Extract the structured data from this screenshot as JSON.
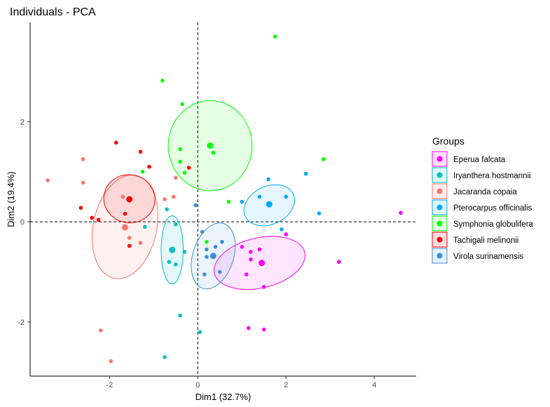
{
  "chart_data": {
    "type": "scatter",
    "title": "Individuals - PCA",
    "xlabel": "Dim1 (32.7%)",
    "ylabel": "Dim2 (19.4%)",
    "xlim": [
      -3.8,
      4.95
    ],
    "ylim": [
      -3.08,
      3.98
    ],
    "xticks": [
      -2,
      0,
      2,
      4
    ],
    "yticks": [
      -2,
      0,
      2
    ],
    "reference_lines": {
      "x": 0,
      "y": 0,
      "style": "dashed"
    },
    "grid": false,
    "legend": {
      "title": "Groups",
      "position": "right"
    },
    "series": [
      {
        "name": "Eperua falcata",
        "color": "#ff00ff",
        "points": [
          [
            1.0,
            -0.5
          ],
          [
            1.2,
            -0.6
          ],
          [
            1.4,
            -0.55
          ],
          [
            1.2,
            -0.75
          ],
          [
            2.0,
            -0.25
          ],
          [
            1.1,
            -1.05
          ],
          [
            1.5,
            -1.3
          ],
          [
            3.2,
            -0.8
          ],
          [
            4.6,
            0.18
          ],
          [
            1.15,
            -2.12
          ],
          [
            1.5,
            -2.15
          ]
        ],
        "centroid": [
          1.45,
          -0.82
        ],
        "ellipse": {
          "cx": 1.4,
          "cy": -0.82,
          "rx": 1.05,
          "ry": 0.5,
          "angle": -13
        }
      },
      {
        "name": "Iryanthera hostmannii",
        "color": "#00bfc4",
        "points": [
          [
            -0.5,
            -0.05
          ],
          [
            -0.65,
            -0.8
          ],
          [
            -0.5,
            -0.85
          ],
          [
            -0.3,
            -0.6
          ],
          [
            -1.2,
            -0.1
          ],
          [
            -0.4,
            -1.87
          ],
          [
            0.05,
            -2.2
          ],
          [
            -0.75,
            -2.7
          ],
          [
            -0.7,
            0.25
          ]
        ],
        "centroid": [
          -0.58,
          -0.56
        ],
        "ellipse": {
          "cx": -0.58,
          "cy": -0.56,
          "rx": 0.25,
          "ry": 0.68,
          "angle": 0
        }
      },
      {
        "name": "Jacaranda copaia",
        "color": "#f8766d",
        "points": [
          [
            -3.4,
            0.83
          ],
          [
            -2.6,
            1.25
          ],
          [
            -2.6,
            0.78
          ],
          [
            -1.7,
            0.5
          ],
          [
            -1.55,
            -0.32
          ],
          [
            -1.3,
            -0.42
          ],
          [
            -0.55,
            0.5
          ],
          [
            -0.5,
            0.88
          ],
          [
            -0.75,
            0.45
          ],
          [
            -2.2,
            -2.17
          ],
          [
            -1.97,
            -2.78
          ]
        ],
        "centroid": [
          -1.65,
          -0.11
        ],
        "ellipse": {
          "cx": -1.65,
          "cy": -0.1,
          "rx": 0.72,
          "ry": 1.05,
          "angle": 12
        }
      },
      {
        "name": "Pterocarpus officinalis",
        "color": "#00a9ff",
        "points": [
          [
            1.0,
            0.4
          ],
          [
            1.4,
            0.5
          ],
          [
            1.6,
            0.85
          ],
          [
            2.0,
            0.5
          ],
          [
            1.9,
            -0.15
          ],
          [
            2.45,
            0.96
          ],
          [
            2.75,
            0.17
          ]
        ],
        "centroid": [
          1.62,
          0.35
        ],
        "ellipse": {
          "cx": 1.62,
          "cy": 0.33,
          "rx": 0.6,
          "ry": 0.38,
          "angle": -25
        }
      },
      {
        "name": "Symphonia globulifera",
        "color": "#00ff00",
        "points": [
          [
            -0.8,
            2.82
          ],
          [
            -0.35,
            2.35
          ],
          [
            1.75,
            3.7
          ],
          [
            -0.4,
            1.45
          ],
          [
            -0.4,
            1.2
          ],
          [
            -0.3,
            0.98
          ],
          [
            0.35,
            1.38
          ],
          [
            2.85,
            1.25
          ],
          [
            0.7,
            0.4
          ],
          [
            -1.25,
            1.0
          ],
          [
            0.2,
            -0.4
          ]
        ],
        "centroid": [
          0.28,
          1.52
        ],
        "ellipse": {
          "cx": 0.28,
          "cy": 1.52,
          "rx": 0.95,
          "ry": 0.9,
          "angle": 0
        }
      },
      {
        "name": "Tachigali melinonii",
        "color": "#ff0000",
        "points": [
          [
            -1.85,
            1.58
          ],
          [
            -1.3,
            1.4
          ],
          [
            -1.1,
            1.1
          ],
          [
            -0.2,
            1.08
          ],
          [
            -2.65,
            0.28
          ],
          [
            -2.4,
            0.08
          ],
          [
            -2.25,
            0.04
          ],
          [
            -1.65,
            0.16
          ],
          [
            -1.55,
            -0.48
          ]
        ],
        "centroid": [
          -1.55,
          0.45
        ],
        "ellipse": {
          "cx": -1.55,
          "cy": 0.46,
          "rx": 0.58,
          "ry": 0.48,
          "angle": 8
        }
      },
      {
        "name": "Virola surinamensis",
        "color": "#3c8fd6",
        "points": [
          [
            -0.05,
            0.33
          ],
          [
            0.1,
            -0.2
          ],
          [
            0.2,
            -0.55
          ],
          [
            0.4,
            -0.5
          ],
          [
            0.2,
            -0.7
          ],
          [
            0.55,
            -0.4
          ],
          [
            0.5,
            -1.0
          ],
          [
            0.15,
            -1.05
          ]
        ],
        "centroid": [
          0.35,
          -0.68
        ],
        "ellipse": {
          "cx": 0.35,
          "cy": -0.68,
          "rx": 0.46,
          "ry": 0.68,
          "angle": 18
        }
      }
    ]
  }
}
